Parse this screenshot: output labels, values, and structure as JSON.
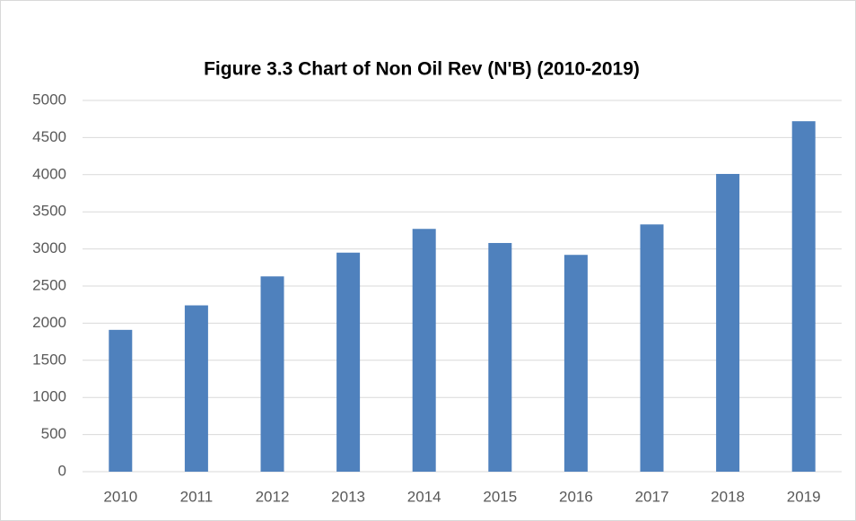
{
  "chart_data": {
    "type": "bar",
    "title": "Figure 3.3 Chart of Non Oil Rev (N'B) (2010-2019)",
    "categories": [
      "2010",
      "2011",
      "2012",
      "2013",
      "2014",
      "2015",
      "2016",
      "2017",
      "2018",
      "2019"
    ],
    "values": [
      1910,
      2240,
      2630,
      2950,
      3270,
      3080,
      2920,
      3330,
      4010,
      4720
    ],
    "color": "#4f81bd",
    "ylim": [
      0,
      5000
    ],
    "yticks": [
      0,
      500,
      1000,
      1500,
      2000,
      2500,
      3000,
      3500,
      4000,
      4500,
      5000
    ],
    "grid": true
  }
}
